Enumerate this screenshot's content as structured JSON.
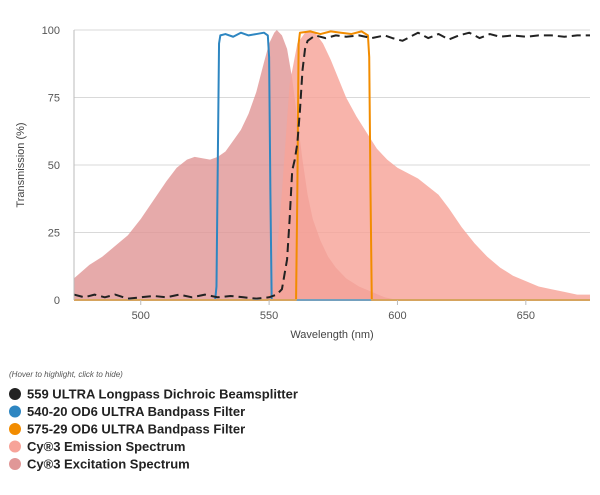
{
  "chart_data": {
    "type": "area",
    "xlabel": "Wavelength (nm)",
    "ylabel": "Transmission (%)",
    "xlim": [
      474,
      675
    ],
    "ylim": [
      0,
      100
    ],
    "x_ticks": [
      500,
      550,
      600,
      650
    ],
    "y_ticks": [
      0,
      25,
      50,
      75,
      100
    ],
    "grid": "horizontal",
    "legend_position": "bottom",
    "legend_hint": "(Hover to highlight, click to hide)",
    "series": [
      {
        "name": "559 ULTRA Longpass Dichroic Beamsplitter",
        "color": "#222222",
        "style": "dashed-line",
        "points": [
          [
            474,
            2
          ],
          [
            478,
            1
          ],
          [
            482,
            2
          ],
          [
            486,
            1
          ],
          [
            490,
            2
          ],
          [
            495,
            0.5
          ],
          [
            500,
            1
          ],
          [
            505,
            1.5
          ],
          [
            510,
            1
          ],
          [
            515,
            2
          ],
          [
            520,
            1
          ],
          [
            525,
            2
          ],
          [
            530,
            1
          ],
          [
            535,
            1.5
          ],
          [
            540,
            1
          ],
          [
            545,
            0.5
          ],
          [
            550,
            1
          ],
          [
            553,
            2
          ],
          [
            555,
            4
          ],
          [
            557,
            15
          ],
          [
            558,
            30
          ],
          [
            559,
            48
          ],
          [
            560,
            52
          ],
          [
            561,
            58
          ],
          [
            562,
            70
          ],
          [
            563,
            85
          ],
          [
            564,
            93
          ],
          [
            565,
            96
          ],
          [
            568,
            98
          ],
          [
            572,
            97
          ],
          [
            576,
            98
          ],
          [
            580,
            97.5
          ],
          [
            585,
            98
          ],
          [
            590,
            97
          ],
          [
            595,
            98
          ],
          [
            598,
            97
          ],
          [
            602,
            96
          ],
          [
            605,
            97.5
          ],
          [
            608,
            99
          ],
          [
            612,
            97
          ],
          [
            616,
            98.5
          ],
          [
            620,
            96.5
          ],
          [
            624,
            98
          ],
          [
            628,
            99
          ],
          [
            632,
            97
          ],
          [
            636,
            98.5
          ],
          [
            640,
            97.5
          ],
          [
            645,
            98
          ],
          [
            650,
            97.5
          ],
          [
            655,
            98
          ],
          [
            660,
            98
          ],
          [
            665,
            97.5
          ],
          [
            670,
            98
          ],
          [
            675,
            98
          ]
        ]
      },
      {
        "name": "540-20 OD6 ULTRA Bandpass Filter",
        "color": "#2e86c1",
        "style": "line",
        "points": [
          [
            474,
            0
          ],
          [
            529,
            0
          ],
          [
            529.5,
            5
          ],
          [
            530,
            50
          ],
          [
            530.5,
            95
          ],
          [
            531,
            98
          ],
          [
            533,
            98.5
          ],
          [
            536,
            97.5
          ],
          [
            539,
            99
          ],
          [
            542,
            98
          ],
          [
            545,
            98.5
          ],
          [
            548,
            99
          ],
          [
            549.5,
            98
          ],
          [
            550,
            90
          ],
          [
            550.5,
            40
          ],
          [
            551,
            0
          ],
          [
            675,
            0
          ]
        ]
      },
      {
        "name": "575-29 OD6 ULTRA Bandpass Filter",
        "color": "#f28c00",
        "style": "line",
        "points": [
          [
            474,
            0
          ],
          [
            560.5,
            0
          ],
          [
            561,
            40
          ],
          [
            561.5,
            95
          ],
          [
            562,
            99
          ],
          [
            566,
            99.5
          ],
          [
            570,
            98.5
          ],
          [
            574,
            99.5
          ],
          [
            578,
            99
          ],
          [
            582,
            98.5
          ],
          [
            586,
            99.5
          ],
          [
            588.5,
            98
          ],
          [
            589,
            90
          ],
          [
            589.5,
            40
          ],
          [
            590,
            0
          ],
          [
            675,
            0
          ]
        ]
      },
      {
        "name": "Cy®3 Emission Spectrum",
        "color": "#f7a399",
        "style": "area",
        "points": [
          [
            474,
            0
          ],
          [
            548,
            0
          ],
          [
            552,
            5
          ],
          [
            555,
            40
          ],
          [
            558,
            80
          ],
          [
            561,
            95
          ],
          [
            564,
            99
          ],
          [
            566,
            100
          ],
          [
            568,
            99
          ],
          [
            571,
            95
          ],
          [
            574,
            89
          ],
          [
            577,
            82
          ],
          [
            580,
            75
          ],
          [
            584,
            68
          ],
          [
            588,
            62
          ],
          [
            592,
            56
          ],
          [
            596,
            52
          ],
          [
            600,
            49
          ],
          [
            604,
            47
          ],
          [
            608,
            45
          ],
          [
            612,
            42
          ],
          [
            616,
            39
          ],
          [
            620,
            34
          ],
          [
            625,
            27
          ],
          [
            630,
            21
          ],
          [
            635,
            16
          ],
          [
            640,
            12
          ],
          [
            645,
            9
          ],
          [
            650,
            7
          ],
          [
            655,
            5
          ],
          [
            660,
            4
          ],
          [
            665,
            3
          ],
          [
            670,
            2
          ],
          [
            675,
            2
          ]
        ]
      },
      {
        "name": "Cy®3 Excitation Spectrum",
        "color": "#e09797",
        "style": "area",
        "points": [
          [
            474,
            8
          ],
          [
            480,
            13
          ],
          [
            485,
            16
          ],
          [
            490,
            20
          ],
          [
            495,
            24
          ],
          [
            500,
            30
          ],
          [
            505,
            37
          ],
          [
            510,
            44
          ],
          [
            514,
            49
          ],
          [
            518,
            52
          ],
          [
            521,
            53
          ],
          [
            524,
            52.5
          ],
          [
            527,
            52
          ],
          [
            530,
            53
          ],
          [
            533,
            55
          ],
          [
            536,
            59
          ],
          [
            539,
            63
          ],
          [
            542,
            69
          ],
          [
            545,
            77
          ],
          [
            548,
            88
          ],
          [
            550,
            95
          ],
          [
            552,
            99
          ],
          [
            553,
            100
          ],
          [
            555,
            98
          ],
          [
            557,
            93
          ],
          [
            559,
            82
          ],
          [
            561,
            67
          ],
          [
            563,
            52
          ],
          [
            565,
            39
          ],
          [
            567,
            30
          ],
          [
            570,
            22
          ],
          [
            573,
            16
          ],
          [
            576,
            12
          ],
          [
            580,
            8
          ],
          [
            585,
            5
          ],
          [
            590,
            3
          ],
          [
            595,
            1
          ],
          [
            600,
            0
          ],
          [
            675,
            0
          ]
        ]
      }
    ]
  }
}
